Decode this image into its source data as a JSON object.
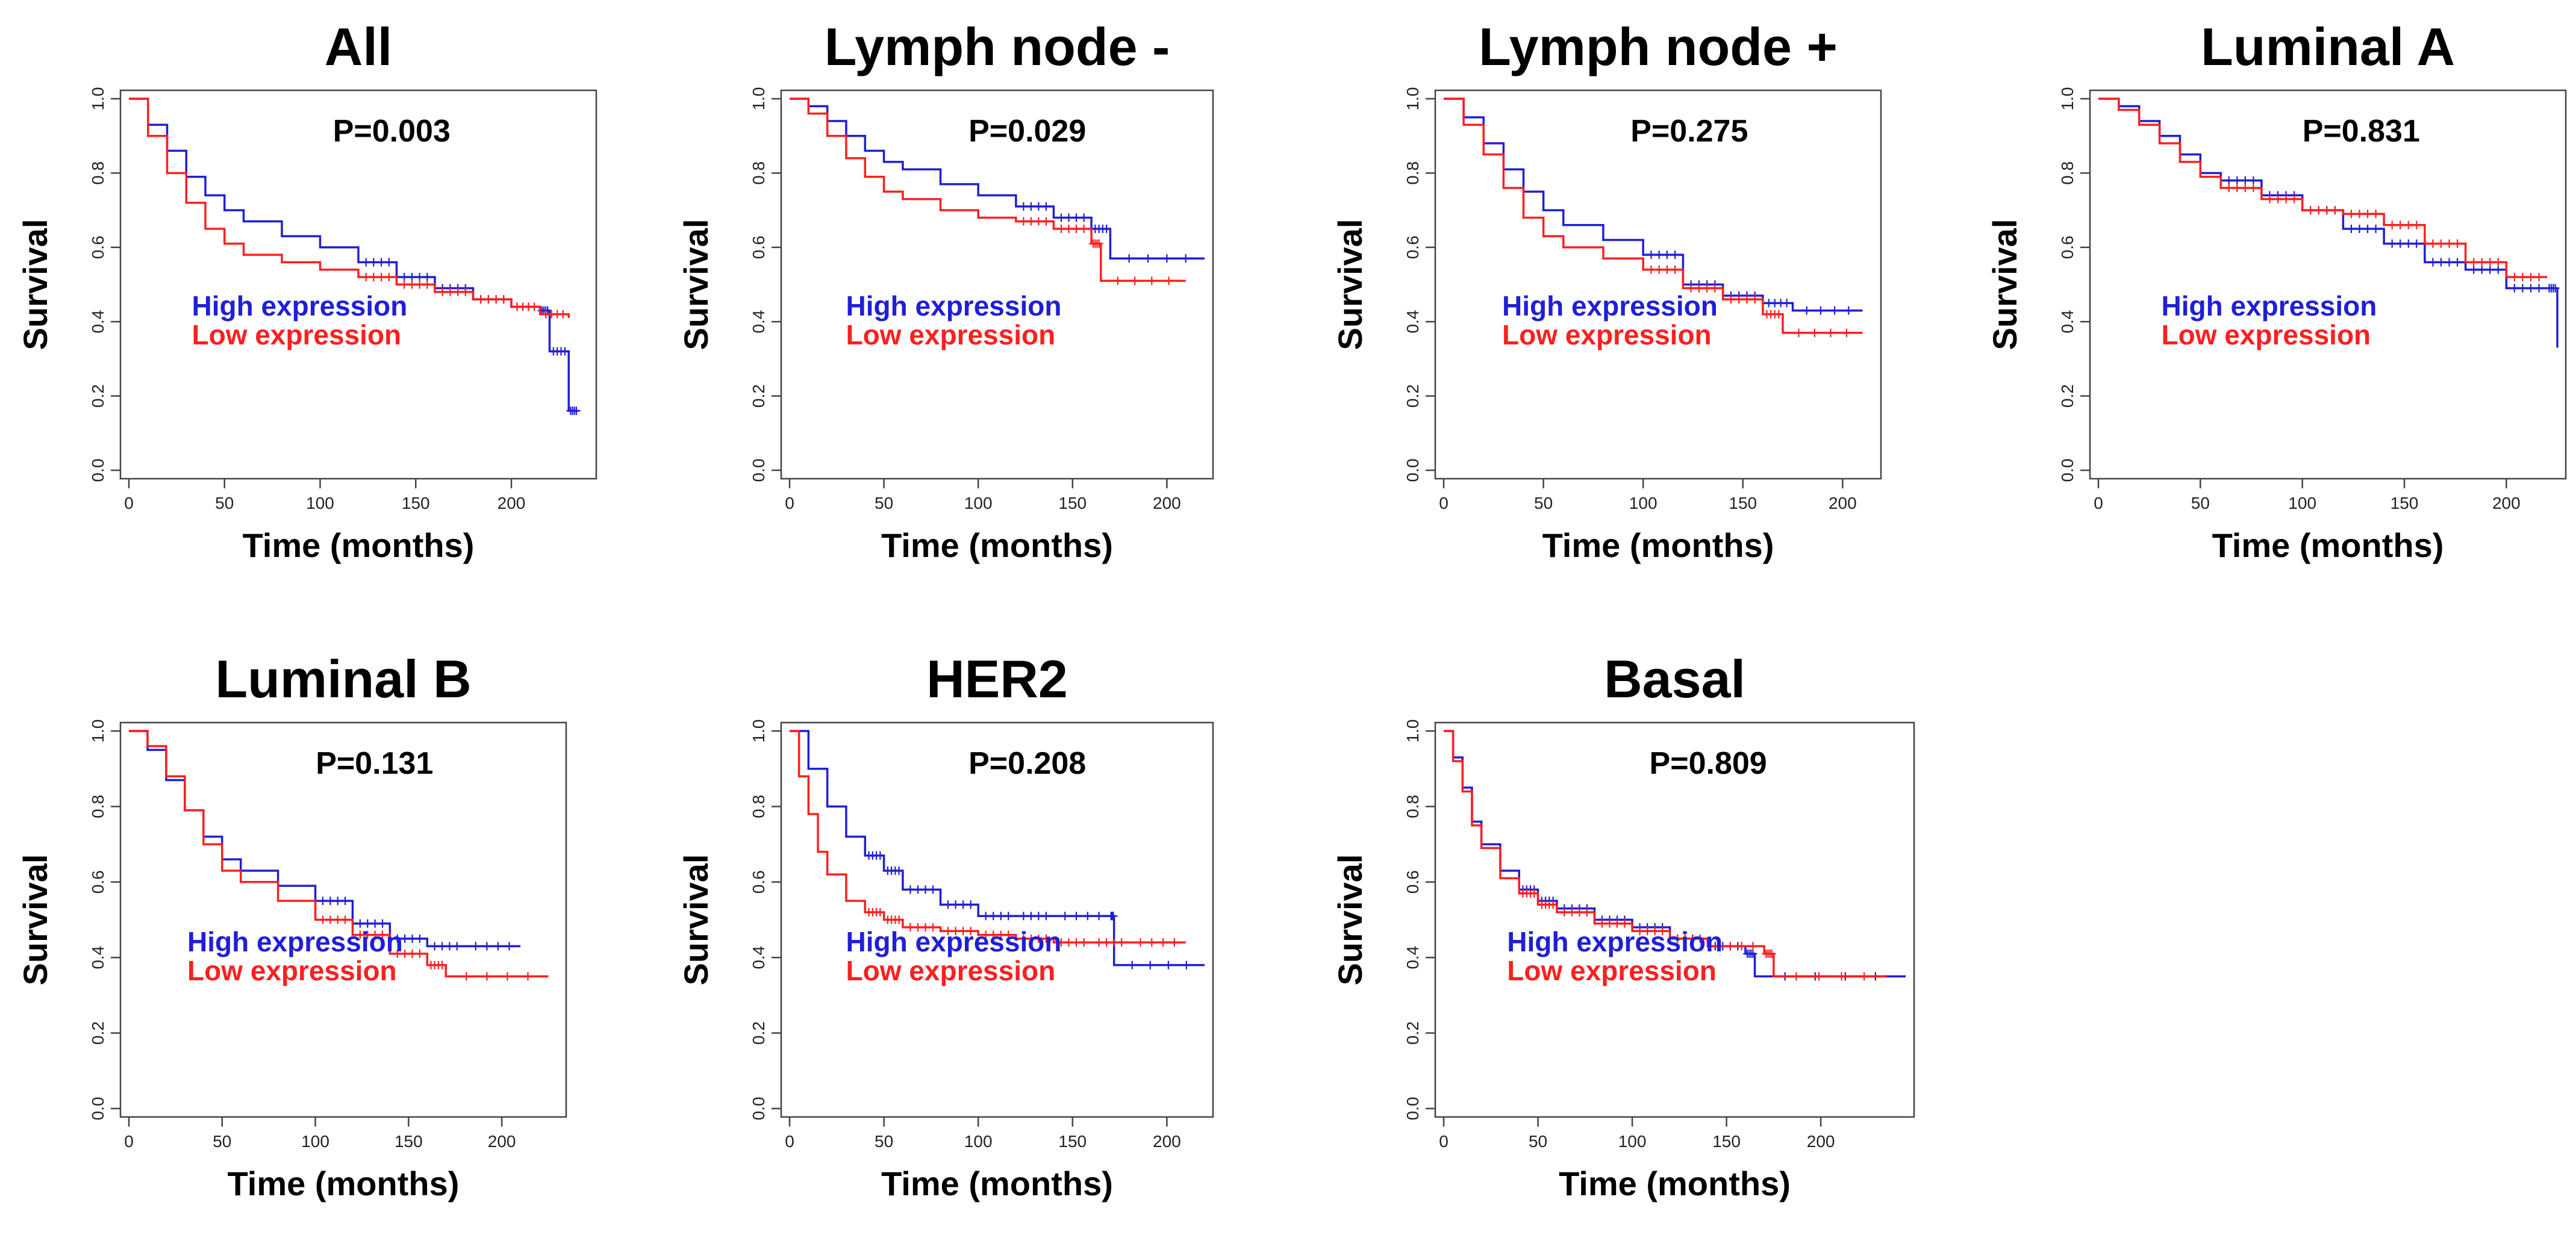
{
  "colors": {
    "high": "#1f1fd6",
    "low": "#ff1f1f"
  },
  "chart_data": [
    {
      "type": "line",
      "title": "All",
      "annotation": "P=0.003",
      "xlabel": "Time (months)",
      "ylabel": "Survival",
      "xlim": [
        0,
        240
      ],
      "ylim": [
        0,
        1
      ],
      "xticks": [
        0,
        50,
        100,
        150,
        200
      ],
      "yticks": [
        0.0,
        0.2,
        0.4,
        0.6,
        0.8,
        1.0
      ],
      "legend": "center-left",
      "series": [
        {
          "name": "High expression",
          "color": "#1f1fd6",
          "x": [
            0,
            10,
            20,
            30,
            40,
            50,
            60,
            80,
            100,
            120,
            140,
            160,
            180,
            200,
            215,
            220,
            230,
            235
          ],
          "y": [
            1.0,
            0.93,
            0.86,
            0.79,
            0.74,
            0.7,
            0.67,
            0.63,
            0.6,
            0.56,
            0.52,
            0.49,
            0.46,
            0.44,
            0.43,
            0.32,
            0.16,
            0.16
          ],
          "censor_from": 120
        },
        {
          "name": "Low expression",
          "color": "#ff1f1f",
          "x": [
            0,
            10,
            20,
            30,
            40,
            50,
            60,
            80,
            100,
            120,
            140,
            160,
            180,
            200,
            215,
            230
          ],
          "y": [
            1.0,
            0.9,
            0.8,
            0.72,
            0.65,
            0.61,
            0.58,
            0.56,
            0.54,
            0.52,
            0.5,
            0.48,
            0.46,
            0.44,
            0.42,
            0.41
          ],
          "censor_from": 120
        }
      ]
    },
    {
      "type": "line",
      "title": "Lymph node -",
      "annotation": "P=0.029",
      "xlabel": "Time (months)",
      "ylabel": "Survival",
      "xlim": [
        0,
        220
      ],
      "ylim": [
        0,
        1
      ],
      "xticks": [
        0,
        50,
        100,
        150,
        200
      ],
      "yticks": [
        0.0,
        0.2,
        0.4,
        0.6,
        0.8,
        1.0
      ],
      "legend": "center-left",
      "series": [
        {
          "name": "High expression",
          "color": "#1f1fd6",
          "x": [
            0,
            10,
            20,
            30,
            40,
            50,
            60,
            80,
            100,
            120,
            140,
            160,
            170,
            220
          ],
          "y": [
            1.0,
            0.98,
            0.94,
            0.9,
            0.86,
            0.83,
            0.81,
            0.77,
            0.74,
            0.71,
            0.68,
            0.65,
            0.57,
            0.57
          ],
          "censor_from": 110
        },
        {
          "name": "Low expression",
          "color": "#ff1f1f",
          "x": [
            0,
            10,
            20,
            30,
            40,
            50,
            60,
            80,
            100,
            120,
            140,
            160,
            165,
            210
          ],
          "y": [
            1.0,
            0.96,
            0.9,
            0.84,
            0.79,
            0.75,
            0.73,
            0.7,
            0.68,
            0.67,
            0.65,
            0.61,
            0.51,
            0.51
          ],
          "censor_from": 110
        }
      ]
    },
    {
      "type": "line",
      "title": "Lymph node +",
      "annotation": "P=0.275",
      "xlabel": "Time (months)",
      "ylabel": "Survival",
      "xlim": [
        0,
        215
      ],
      "ylim": [
        0,
        1
      ],
      "xticks": [
        0,
        50,
        100,
        150,
        200
      ],
      "yticks": [
        0.0,
        0.2,
        0.4,
        0.6,
        0.8,
        1.0
      ],
      "legend": "center-left",
      "series": [
        {
          "name": "High expression",
          "color": "#1f1fd6",
          "x": [
            0,
            10,
            20,
            30,
            40,
            50,
            60,
            80,
            100,
            120,
            140,
            160,
            175,
            210
          ],
          "y": [
            1.0,
            0.95,
            0.88,
            0.81,
            0.75,
            0.7,
            0.66,
            0.62,
            0.58,
            0.5,
            0.47,
            0.45,
            0.43,
            0.43
          ],
          "censor_from": 100
        },
        {
          "name": "Low expression",
          "color": "#ff1f1f",
          "x": [
            0,
            10,
            20,
            30,
            40,
            50,
            60,
            80,
            100,
            120,
            140,
            160,
            170,
            210
          ],
          "y": [
            1.0,
            0.93,
            0.85,
            0.76,
            0.68,
            0.63,
            0.6,
            0.57,
            0.54,
            0.49,
            0.46,
            0.42,
            0.37,
            0.37
          ],
          "censor_from": 100
        }
      ]
    },
    {
      "type": "line",
      "title": "Luminal A",
      "annotation": "P=0.831",
      "xlabel": "Time (months)",
      "ylabel": "Survival",
      "xlim": [
        0,
        225
      ],
      "ylim": [
        0,
        1
      ],
      "xticks": [
        0,
        50,
        100,
        150,
        200
      ],
      "yticks": [
        0.0,
        0.2,
        0.4,
        0.6,
        0.8,
        1.0
      ],
      "legend": "center-left",
      "series": [
        {
          "name": "High expression",
          "color": "#1f1fd6",
          "x": [
            0,
            10,
            20,
            30,
            40,
            50,
            60,
            80,
            100,
            120,
            140,
            160,
            180,
            200,
            220,
            225
          ],
          "y": [
            1.0,
            0.98,
            0.94,
            0.9,
            0.85,
            0.8,
            0.78,
            0.74,
            0.7,
            0.65,
            0.61,
            0.56,
            0.54,
            0.49,
            0.49,
            0.33
          ],
          "censor_from": 60
        },
        {
          "name": "Low expression",
          "color": "#ff1f1f",
          "x": [
            0,
            10,
            20,
            30,
            40,
            50,
            60,
            80,
            100,
            120,
            140,
            160,
            180,
            200,
            220
          ],
          "y": [
            1.0,
            0.97,
            0.93,
            0.88,
            0.83,
            0.79,
            0.76,
            0.73,
            0.7,
            0.69,
            0.66,
            0.61,
            0.56,
            0.52,
            0.52
          ],
          "censor_from": 60
        }
      ]
    },
    {
      "type": "line",
      "title": "Luminal B",
      "annotation": "P=0.131",
      "xlabel": "Time (months)",
      "ylabel": "Survival",
      "xlim": [
        0,
        230
      ],
      "ylim": [
        0,
        1
      ],
      "xticks": [
        0,
        50,
        100,
        150,
        200
      ],
      "yticks": [
        0.0,
        0.2,
        0.4,
        0.6,
        0.8,
        1.0
      ],
      "legend": "center-left",
      "series": [
        {
          "name": "High expression",
          "color": "#1f1fd6",
          "x": [
            0,
            10,
            20,
            30,
            40,
            50,
            60,
            80,
            100,
            120,
            140,
            160,
            180,
            210
          ],
          "y": [
            1.0,
            0.95,
            0.87,
            0.79,
            0.72,
            0.66,
            0.63,
            0.59,
            0.55,
            0.49,
            0.45,
            0.43,
            0.43,
            0.43
          ],
          "censor_from": 100
        },
        {
          "name": "Low expression",
          "color": "#ff1f1f",
          "x": [
            0,
            10,
            20,
            30,
            40,
            50,
            60,
            80,
            100,
            120,
            140,
            160,
            170,
            225
          ],
          "y": [
            1.0,
            0.96,
            0.88,
            0.79,
            0.7,
            0.63,
            0.6,
            0.55,
            0.5,
            0.46,
            0.41,
            0.38,
            0.35,
            0.35
          ],
          "censor_from": 100
        }
      ]
    },
    {
      "type": "line",
      "title": "HER2",
      "annotation": "P=0.208",
      "xlabel": "Time (months)",
      "ylabel": "Survival",
      "xlim": [
        0,
        220
      ],
      "ylim": [
        0,
        1
      ],
      "xticks": [
        0,
        50,
        100,
        150,
        200
      ],
      "yticks": [
        0.0,
        0.2,
        0.4,
        0.6,
        0.8,
        1.0
      ],
      "legend": "center-left",
      "series": [
        {
          "name": "High expression",
          "color": "#1f1fd6",
          "x": [
            0,
            10,
            20,
            30,
            40,
            50,
            60,
            80,
            100,
            120,
            140,
            170,
            172,
            220
          ],
          "y": [
            1.0,
            0.9,
            0.8,
            0.72,
            0.67,
            0.63,
            0.58,
            0.54,
            0.51,
            0.51,
            0.51,
            0.51,
            0.38,
            0.38
          ],
          "censor_from": 40
        },
        {
          "name": "Low expression",
          "color": "#ff1f1f",
          "x": [
            0,
            5,
            10,
            15,
            20,
            30,
            40,
            50,
            60,
            80,
            100,
            120,
            140,
            160,
            180,
            210
          ],
          "y": [
            1.0,
            0.88,
            0.78,
            0.68,
            0.62,
            0.55,
            0.52,
            0.5,
            0.48,
            0.47,
            0.46,
            0.45,
            0.44,
            0.44,
            0.44,
            0.44
          ],
          "censor_from": 40
        }
      ]
    },
    {
      "type": "line",
      "title": "Basal",
      "annotation": "P=0.809",
      "xlabel": "Time (months)",
      "ylabel": "Survival",
      "xlim": [
        0,
        245
      ],
      "ylim": [
        0,
        1
      ],
      "xticks": [
        0,
        50,
        100,
        150,
        200
      ],
      "yticks": [
        0.0,
        0.2,
        0.4,
        0.6,
        0.8,
        1.0
      ],
      "legend": "center-left",
      "series": [
        {
          "name": "High expression",
          "color": "#1f1fd6",
          "x": [
            0,
            5,
            10,
            15,
            20,
            30,
            40,
            50,
            60,
            80,
            100,
            120,
            140,
            160,
            165,
            245
          ],
          "y": [
            1.0,
            0.93,
            0.85,
            0.76,
            0.7,
            0.63,
            0.58,
            0.55,
            0.53,
            0.5,
            0.48,
            0.45,
            0.43,
            0.41,
            0.35,
            0.35
          ],
          "censor_from": 40
        },
        {
          "name": "Low expression",
          "color": "#ff1f1f",
          "x": [
            0,
            5,
            10,
            15,
            20,
            30,
            40,
            50,
            60,
            80,
            100,
            120,
            140,
            170,
            175,
            235
          ],
          "y": [
            1.0,
            0.92,
            0.84,
            0.75,
            0.69,
            0.61,
            0.57,
            0.54,
            0.52,
            0.49,
            0.47,
            0.45,
            0.43,
            0.41,
            0.35,
            0.35
          ],
          "censor_from": 40
        }
      ]
    }
  ]
}
